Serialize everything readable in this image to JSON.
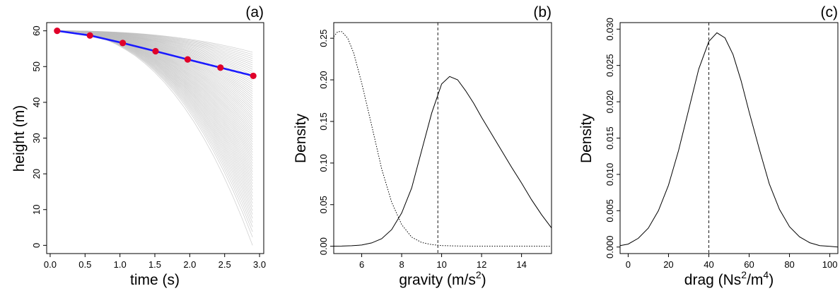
{
  "chart_data": [
    {
      "panel_label": "(a)",
      "type": "line",
      "xlabel": "time (s)",
      "ylabel": "height (m)",
      "xlim": [
        0.0,
        3.0
      ],
      "ylim": [
        0,
        60
      ],
      "xticks": [
        "0.0",
        "0.5",
        "1.0",
        "1.5",
        "2.0",
        "2.5",
        "3.0"
      ],
      "yticks": [
        "0",
        "10",
        "20",
        "30",
        "40",
        "50",
        "60"
      ],
      "observed_points": {
        "x": [
          0.1,
          0.57,
          1.04,
          1.51,
          1.97,
          2.44,
          2.91
        ],
        "y": [
          60.0,
          58.7,
          56.6,
          54.3,
          52.0,
          49.7,
          47.4
        ],
        "color": "#e0002a"
      },
      "fitted_line": {
        "x": [
          0.1,
          0.57,
          1.04,
          1.51,
          1.97,
          2.44,
          2.91
        ],
        "y": [
          60.0,
          58.7,
          56.6,
          54.3,
          52.0,
          49.7,
          47.4
        ],
        "color": "#1a1aff"
      },
      "simulation_band": {
        "t0": 0.1,
        "t_end": 2.9,
        "start_height": 60,
        "end_height_min": 0,
        "end_height_max": 54,
        "color": "#bdbdbd"
      }
    },
    {
      "panel_label": "(b)",
      "type": "line",
      "xlabel": "gravity (m/s",
      "xlabel_sup": "2",
      "xlabel_end": ")",
      "ylabel": "Density",
      "xlim": [
        4.6,
        15.5
      ],
      "ylim": [
        0.0,
        0.26
      ],
      "xticks": [
        "6",
        "8",
        "10",
        "12",
        "14"
      ],
      "yticks": [
        "0.00",
        "0.05",
        "0.10",
        "0.15",
        "0.20",
        "0.25"
      ],
      "reference_x": 9.81,
      "series": [
        {
          "style": "solid",
          "x": [
            4.6,
            5.0,
            5.5,
            6.0,
            6.5,
            7.0,
            7.5,
            8.0,
            8.5,
            9.0,
            9.5,
            10.0,
            10.4,
            10.8,
            11.2,
            11.6,
            12.0,
            12.5,
            13.0,
            13.5,
            14.0,
            14.5,
            15.0,
            15.5
          ],
          "y": [
            0.0001,
            0.0002,
            0.0006,
            0.0015,
            0.004,
            0.009,
            0.02,
            0.04,
            0.07,
            0.115,
            0.16,
            0.195,
            0.204,
            0.2,
            0.187,
            0.172,
            0.155,
            0.135,
            0.115,
            0.095,
            0.076,
            0.056,
            0.038,
            0.022
          ]
        },
        {
          "style": "dotted",
          "x": [
            4.6,
            4.8,
            5.0,
            5.3,
            5.6,
            6.0,
            6.5,
            7.0,
            7.5,
            8.0,
            8.5,
            9.0,
            9.5,
            10.0,
            11.0,
            12.0,
            13.0,
            14.0,
            15.5
          ],
          "y": [
            0.252,
            0.258,
            0.258,
            0.25,
            0.232,
            0.196,
            0.145,
            0.093,
            0.053,
            0.026,
            0.011,
            0.0045,
            0.002,
            0.0008,
            0.0002,
            0.0001,
            0.0001,
            0.0001,
            0.0
          ]
        }
      ]
    },
    {
      "panel_label": "(c)",
      "type": "line",
      "xlabel": "drag (Ns",
      "xlabel_sup1": "2",
      "xlabel_mid": "/m",
      "xlabel_sup2": "4",
      "xlabel_end": ")",
      "ylabel": "Density",
      "xlim": [
        -4,
        104
      ],
      "ylim": [
        0.0,
        0.03
      ],
      "xticks": [
        "0",
        "20",
        "40",
        "60",
        "80",
        "100"
      ],
      "yticks": [
        "0.000",
        "0.005",
        "0.010",
        "0.015",
        "0.020",
        "0.025",
        "0.030"
      ],
      "reference_x": 40,
      "series": [
        {
          "style": "solid",
          "x": [
            -4,
            0,
            5,
            10,
            15,
            20,
            25,
            30,
            35,
            40,
            44,
            48,
            52,
            56,
            60,
            65,
            70,
            75,
            80,
            85,
            90,
            95,
            100,
            104
          ],
          "y": [
            0.0002,
            0.0004,
            0.0012,
            0.0026,
            0.005,
            0.0085,
            0.0133,
            0.0189,
            0.0245,
            0.0283,
            0.0295,
            0.0288,
            0.0265,
            0.0229,
            0.0186,
            0.0135,
            0.0087,
            0.0052,
            0.0028,
            0.0014,
            0.0006,
            0.0002,
            0.0001,
            0.0
          ]
        }
      ]
    }
  ]
}
